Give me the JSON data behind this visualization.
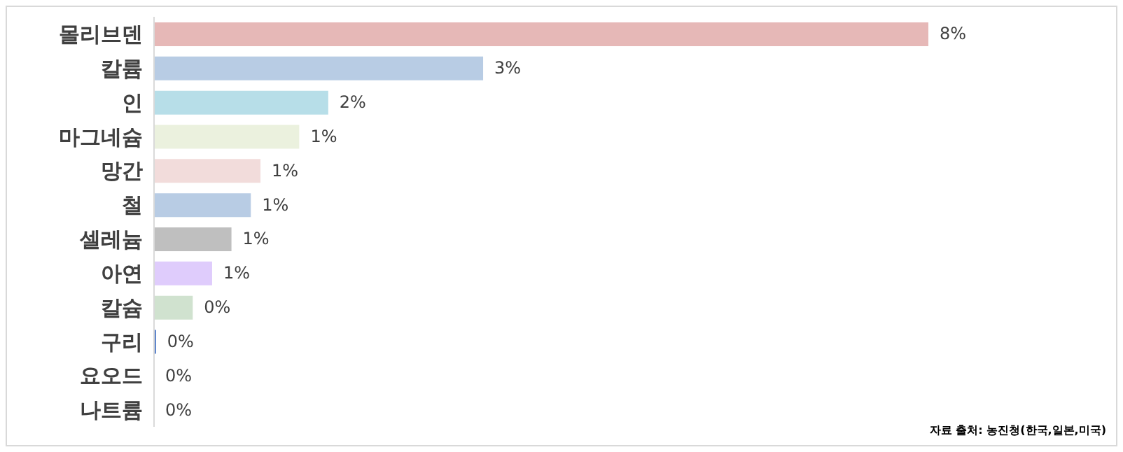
{
  "chart_data": {
    "type": "bar",
    "orientation": "horizontal",
    "categories": [
      "몰리브덴",
      "칼륨",
      "인",
      "마그네슘",
      "망간",
      "철",
      "셀레늄",
      "아연",
      "칼슘",
      "구리",
      "요오드",
      "나트륨"
    ],
    "values": [
      8,
      3.4,
      1.8,
      1.5,
      1.1,
      1.0,
      0.8,
      0.6,
      0.4,
      0.02,
      0,
      0
    ],
    "value_labels": [
      "8%",
      "3%",
      "2%",
      "1%",
      "1%",
      "1%",
      "1%",
      "1%",
      "0%",
      "0%",
      "0%",
      "0%"
    ],
    "colors": [
      "#e6b8b7",
      "#b8cce4",
      "#b7dee8",
      "#ebf1de",
      "#f2dcdb",
      "#b8cce4",
      "#bfbfbf",
      "#dfccfc",
      "#d0e2cf",
      "#4472c4",
      "#d9d9d9",
      "#d9d9d9"
    ],
    "annotations": [
      "자료 출처: 농진청(한국,일본,미국)"
    ],
    "grid": false,
    "legend": false
  }
}
